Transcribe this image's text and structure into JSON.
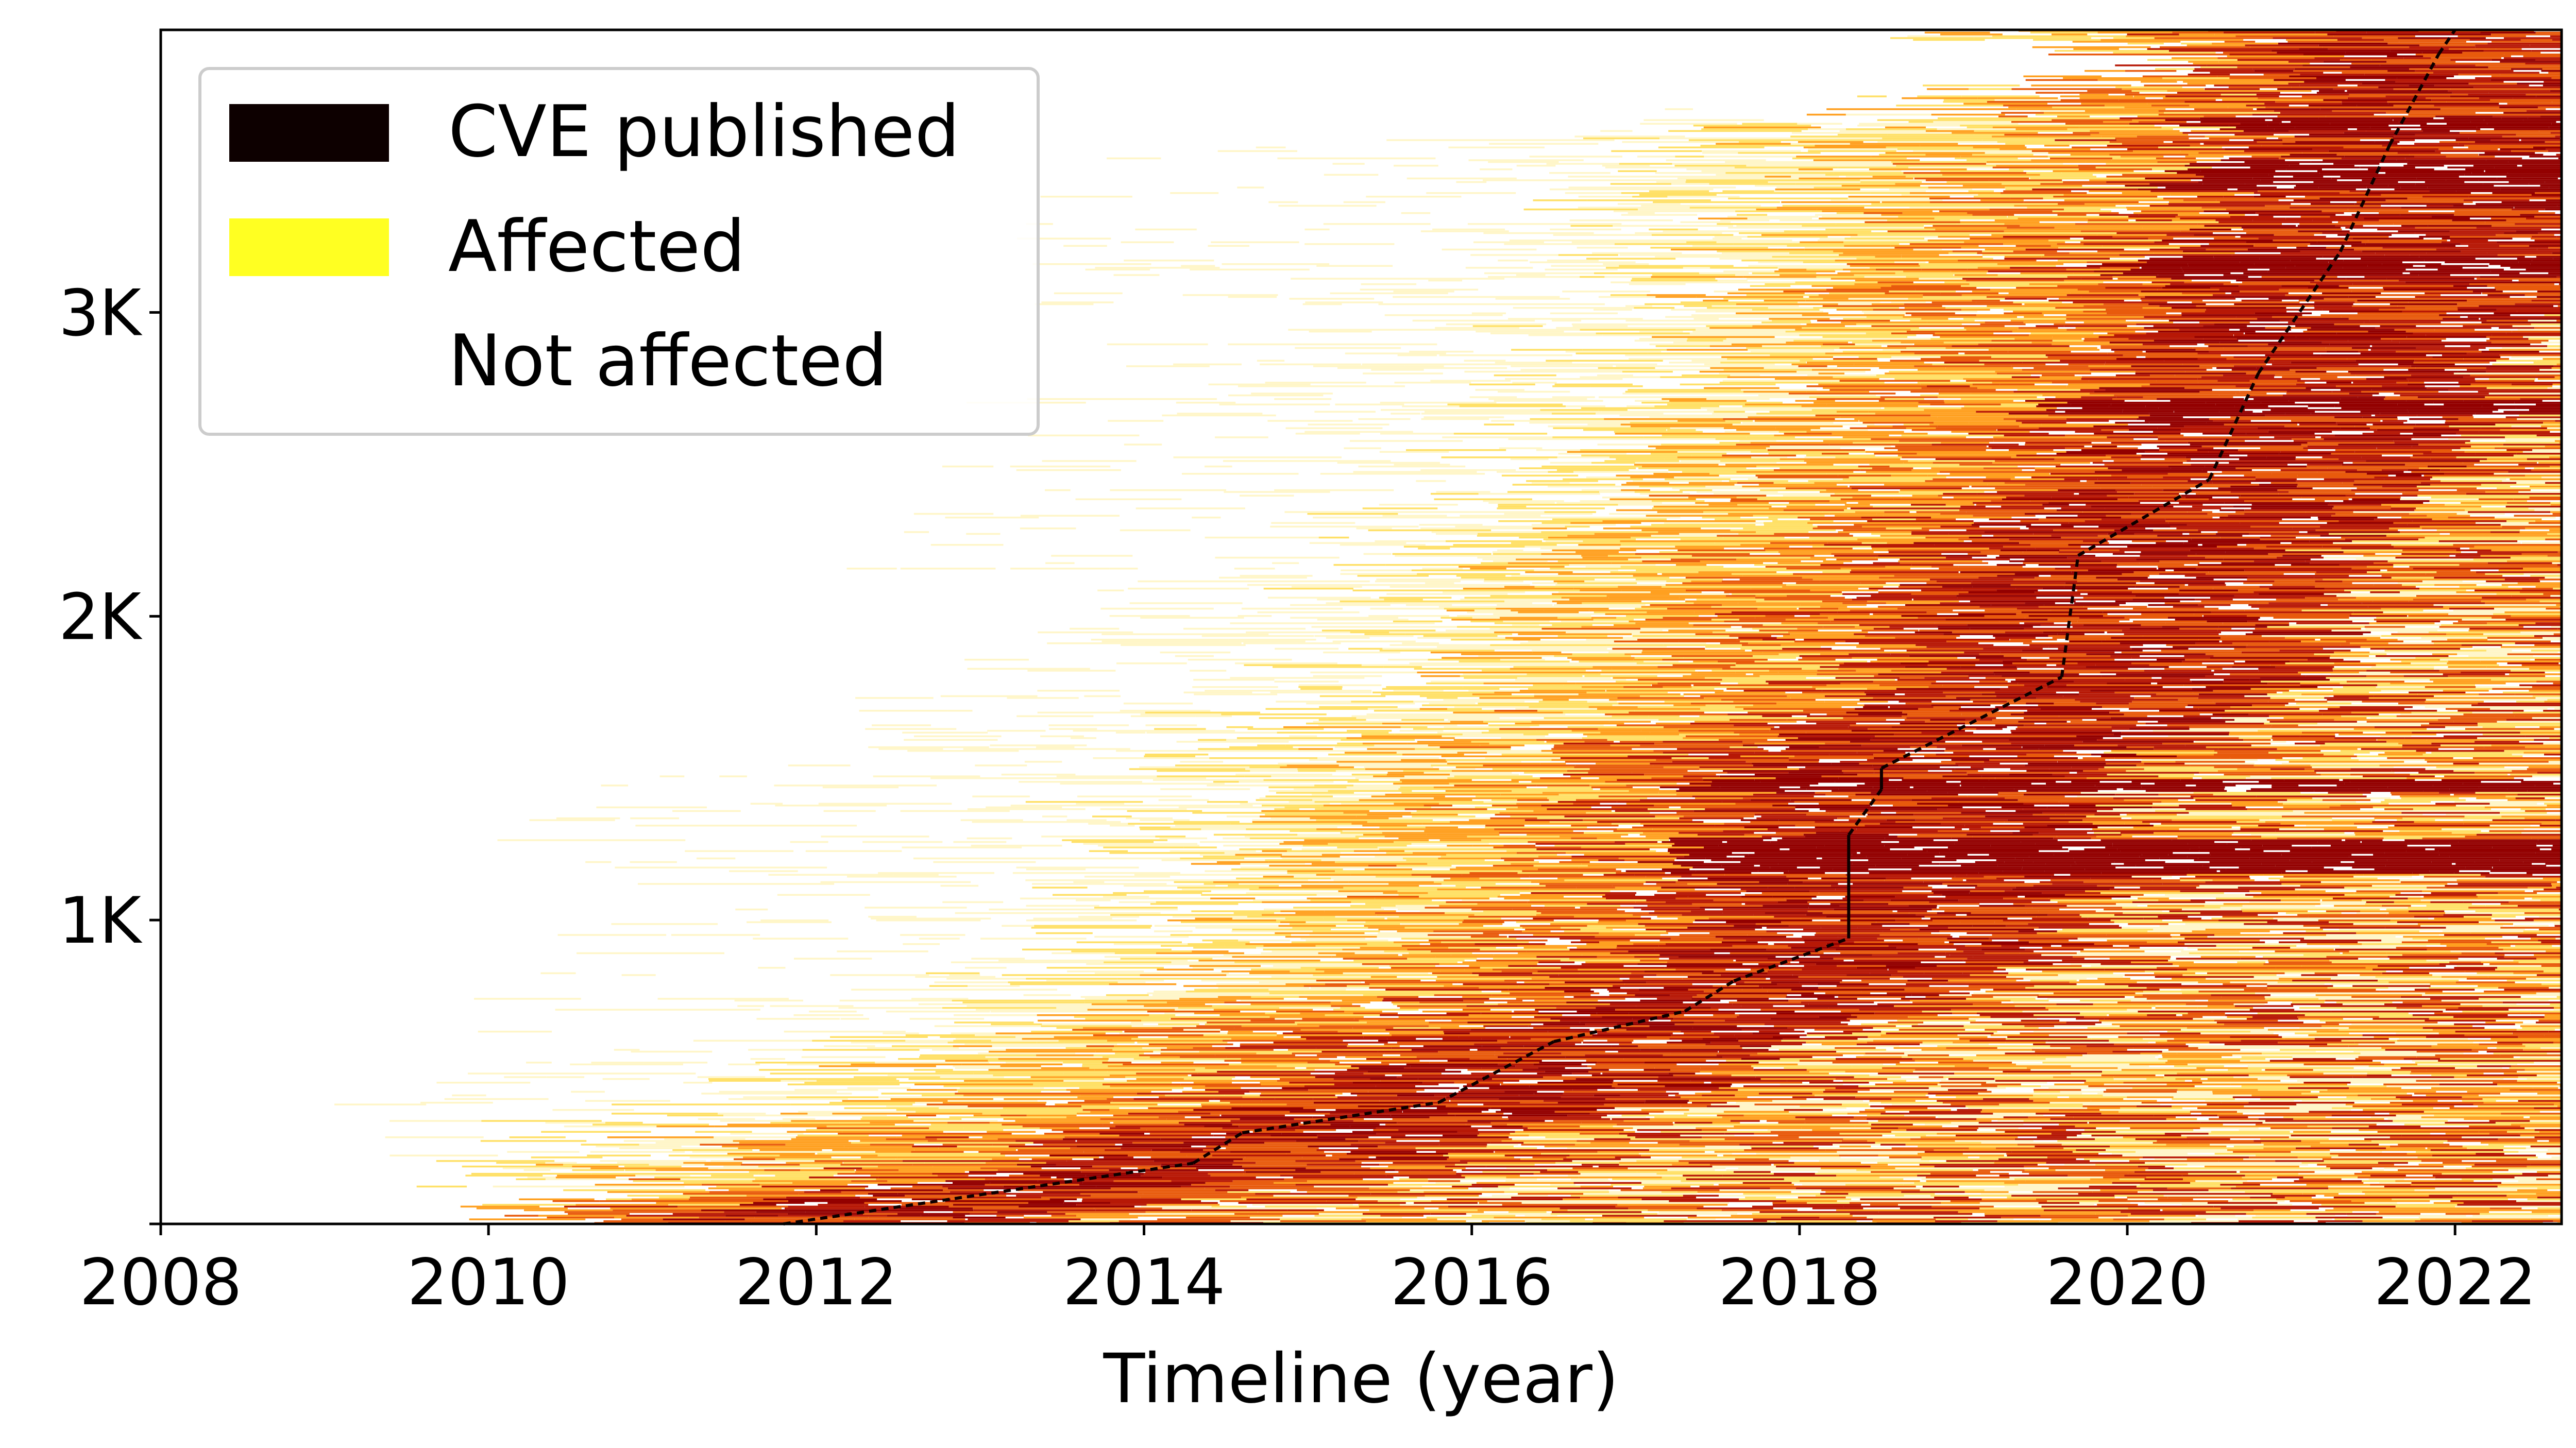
{
  "chart_data": {
    "type": "heatmap",
    "title": "",
    "xlabel": "Timeline (year)",
    "ylabel": "",
    "xlim": [
      2008,
      2022.65
    ],
    "ylim": [
      0,
      3930
    ],
    "x_ticks": [
      2008,
      2010,
      2012,
      2014,
      2016,
      2018,
      2020,
      2022
    ],
    "x_tick_labels": [
      "2008",
      "2010",
      "2012",
      "2014",
      "2016",
      "2018",
      "2020",
      "2022"
    ],
    "y_ticks": [
      0,
      1000,
      2000,
      3000
    ],
    "y_tick_labels": [
      "",
      "1K",
      "2K",
      "3K"
    ],
    "grid": false,
    "legend_position": "upper-left",
    "legend": [
      {
        "label": "CVE published",
        "color": "#0d0000"
      },
      {
        "label": "Affected",
        "color": "#ffff22"
      },
      {
        "label": "Not affected",
        "color": "#ffffff"
      }
    ],
    "colormap": [
      "#ffffff",
      "#fff6c8",
      "#ffe066",
      "#ffa020",
      "#e85a0c",
      "#b71806",
      "#930000"
    ],
    "cve_publication_curve": {
      "row_index": [
        0,
        200,
        300,
        400,
        600,
        700,
        800,
        940,
        1280,
        1430,
        1500,
        1800,
        2200,
        2450,
        2800,
        3200,
        3550,
        3850,
        3930
      ],
      "year": [
        2011.8,
        2014.3,
        2014.6,
        2015.8,
        2016.5,
        2017.3,
        2017.6,
        2018.3,
        2018.3,
        2018.5,
        2018.5,
        2019.6,
        2019.7,
        2020.5,
        2020.8,
        2021.3,
        2021.6,
        2021.9,
        2022.0
      ]
    },
    "exposure_onset_envelope": {
      "row_index": [
        0,
        150,
        300,
        600,
        1000,
        1300,
        1600,
        1900,
        2200,
        2500,
        2800,
        3200,
        3500,
        3800,
        3930
      ],
      "year": [
        2009.4,
        2009.0,
        2008.8,
        2009.5,
        2010.2,
        2010.0,
        2010.8,
        2011.8,
        2012.0,
        2012.5,
        2012.5,
        2013.0,
        2013.5,
        2019.9,
        2018.0
      ]
    },
    "dense_band_rows": [
      [
        1150,
        1260
      ],
      [
        1420,
        1460
      ],
      [
        2660,
        2710
      ],
      [
        3120,
        3180
      ],
      [
        3400,
        3500
      ],
      [
        3600,
        3640
      ]
    ]
  }
}
